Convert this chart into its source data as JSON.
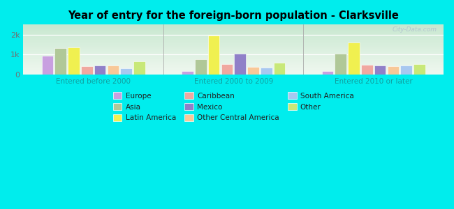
{
  "title": "Year of entry for the foreign-born population - Clarksville",
  "groups": [
    "Entered before 2000",
    "Entered 2000 to 2009",
    "Entered 2010 or later"
  ],
  "colors": {
    "Europe": "#c8a0e0",
    "Asia": "#b0c898",
    "Caribbean": "#f0a8a0",
    "Mexico": "#9080c8",
    "South America": "#a8c8f0",
    "Other Central America": "#f8c898",
    "Latin America": "#f0f050",
    "Other": "#c8e878"
  },
  "values": {
    "Entered before 2000": {
      "Europe": 950,
      "Asia": 1320,
      "Latin America": 1350,
      "Caribbean": 430,
      "Mexico": 470,
      "Other Central America": 460,
      "South America": 300,
      "Other": 680
    },
    "Entered 2000 to 2009": {
      "Europe": 190,
      "Asia": 760,
      "Latin America": 1950,
      "Caribbean": 520,
      "Mexico": 1050,
      "Other Central America": 370,
      "South America": 360,
      "Other": 580
    },
    "Entered 2010 or later": {
      "Europe": 190,
      "Asia": 1060,
      "Latin America": 1600,
      "Caribbean": 480,
      "Mexico": 460,
      "Other Central America": 420,
      "South America": 440,
      "Other": 510
    }
  },
  "bar_order": [
    "Europe",
    "Asia",
    "Latin America",
    "Caribbean",
    "Mexico",
    "Other Central America",
    "South America",
    "Other"
  ],
  "legend_col1": [
    "Europe",
    "Caribbean",
    "South America"
  ],
  "legend_col2": [
    "Asia",
    "Mexico",
    "Other"
  ],
  "legend_col3": [
    "Latin America",
    "Other Central America"
  ],
  "ylim": [
    0,
    2500
  ],
  "yticks": [
    0,
    1000,
    2000
  ],
  "ytick_labels": [
    "0",
    "1k",
    "2k"
  ],
  "background_color": "#00eded",
  "plot_bg": "#e0ede0",
  "watermark": "City-Data.com"
}
